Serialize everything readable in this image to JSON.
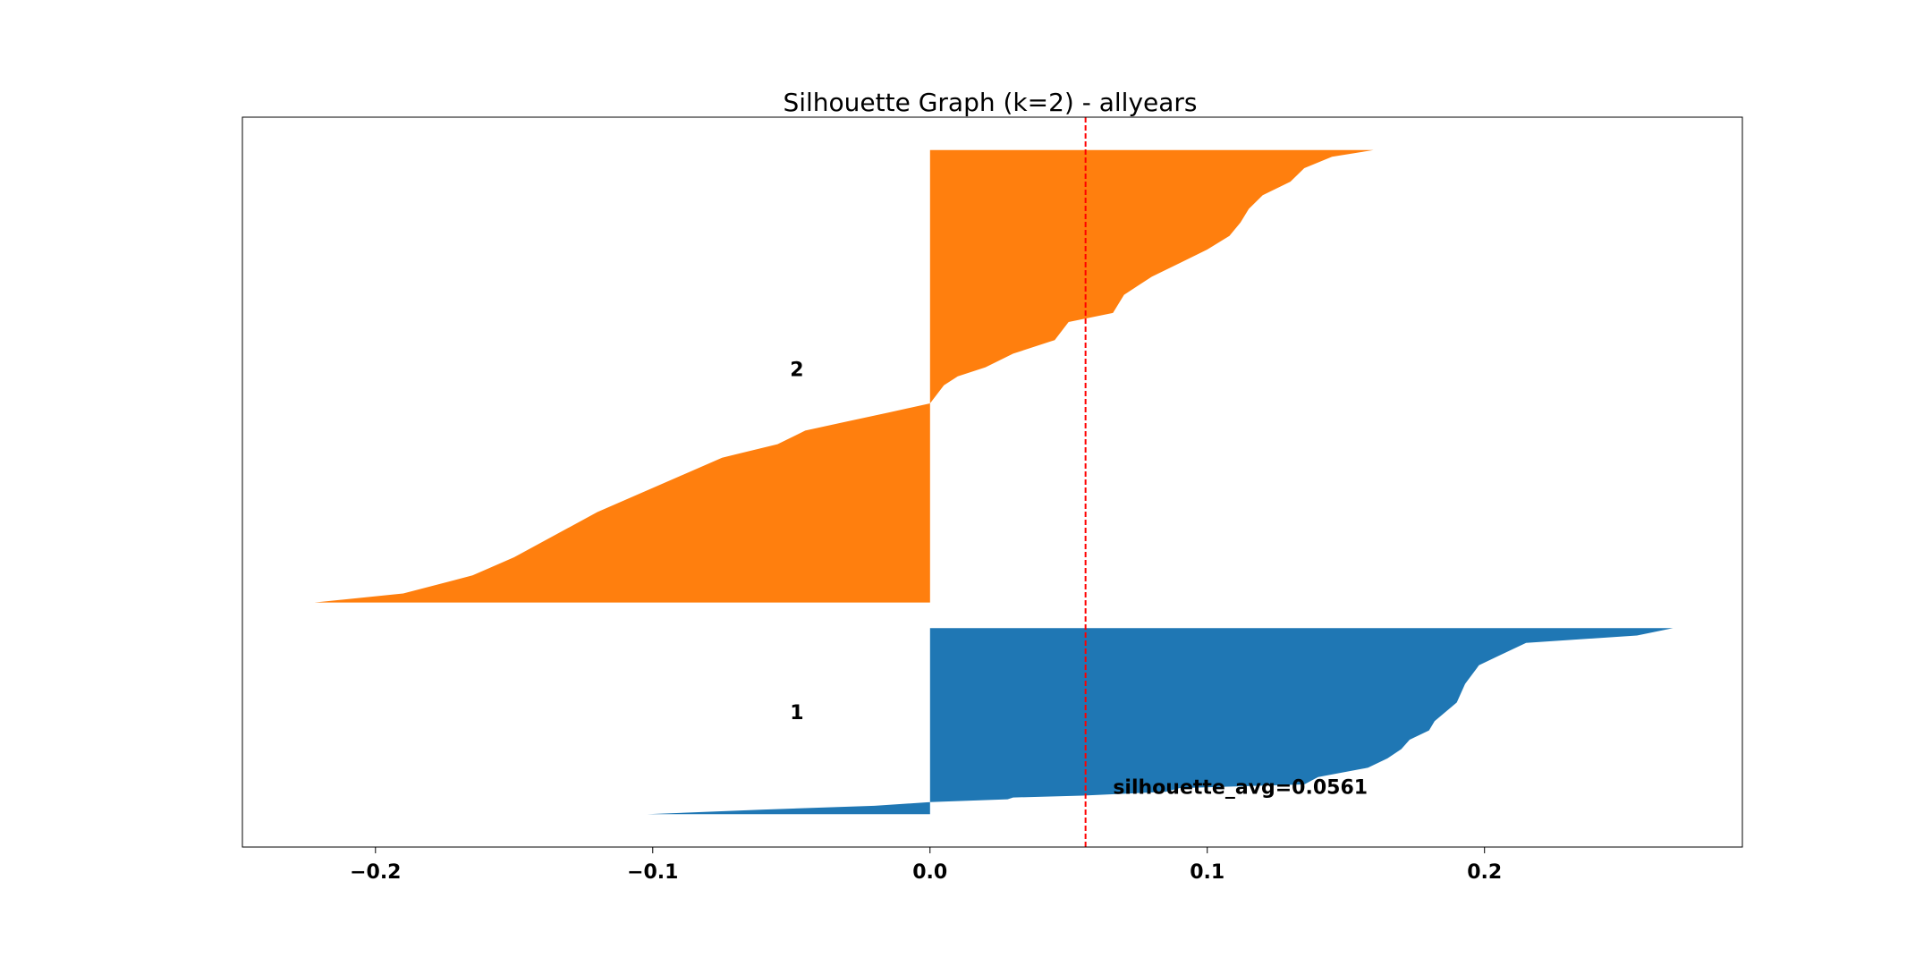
{
  "chart_data": {
    "type": "area",
    "title": "Silhouette Graph (k=2) - allyears",
    "xlabel": "",
    "ylabel": "",
    "xlim": [
      -0.248,
      0.293
    ],
    "ylim": [
      0,
      100
    ],
    "xticks": [
      -0.2,
      -0.1,
      0.0,
      0.1,
      0.2
    ],
    "xtick_labels": [
      "−0.2",
      "−0.1",
      "0.0",
      "0.1",
      "0.2"
    ],
    "grid": false,
    "clusters": [
      {
        "label": "1",
        "color": "#1f77b4",
        "y_range": [
          4.5,
          30.0
        ],
        "label_pos": [
          -0.048,
          18.5
        ],
        "profile": [
          [
            0.0,
            0.268
          ],
          [
            0.04,
            0.255
          ],
          [
            0.08,
            0.215
          ],
          [
            0.15,
            0.205
          ],
          [
            0.2,
            0.198
          ],
          [
            0.3,
            0.193
          ],
          [
            0.4,
            0.19
          ],
          [
            0.5,
            0.182
          ],
          [
            0.55,
            0.18
          ],
          [
            0.6,
            0.173
          ],
          [
            0.65,
            0.17
          ],
          [
            0.7,
            0.165
          ],
          [
            0.75,
            0.158
          ],
          [
            0.8,
            0.14
          ],
          [
            0.84,
            0.135
          ],
          [
            0.86,
            0.09
          ],
          [
            0.88,
            0.085
          ],
          [
            0.9,
            0.055
          ],
          [
            0.91,
            0.03
          ],
          [
            0.92,
            0.028
          ],
          [
            0.935,
            0.0
          ],
          [
            0.955,
            -0.02
          ],
          [
            0.975,
            -0.06
          ],
          [
            1.0,
            -0.102
          ]
        ]
      },
      {
        "label": "2",
        "color": "#ff7f0e",
        "y_range": [
          33.5,
          95.5
        ],
        "label_pos": [
          -0.048,
          65.5
        ],
        "profile": [
          [
            0.0,
            0.16
          ],
          [
            0.015,
            0.145
          ],
          [
            0.04,
            0.135
          ],
          [
            0.07,
            0.13
          ],
          [
            0.1,
            0.12
          ],
          [
            0.13,
            0.115
          ],
          [
            0.16,
            0.112
          ],
          [
            0.19,
            0.108
          ],
          [
            0.22,
            0.1
          ],
          [
            0.25,
            0.09
          ],
          [
            0.28,
            0.08
          ],
          [
            0.32,
            0.07
          ],
          [
            0.36,
            0.066
          ],
          [
            0.38,
            0.05
          ],
          [
            0.42,
            0.045
          ],
          [
            0.45,
            0.03
          ],
          [
            0.48,
            0.02
          ],
          [
            0.5,
            0.01
          ],
          [
            0.52,
            0.005
          ],
          [
            0.56,
            0.0
          ],
          [
            0.58,
            -0.015
          ],
          [
            0.6,
            -0.03
          ],
          [
            0.62,
            -0.045
          ],
          [
            0.65,
            -0.055
          ],
          [
            0.68,
            -0.075
          ],
          [
            0.72,
            -0.09
          ],
          [
            0.76,
            -0.105
          ],
          [
            0.8,
            -0.12
          ],
          [
            0.85,
            -0.135
          ],
          [
            0.9,
            -0.15
          ],
          [
            0.94,
            -0.165
          ],
          [
            0.98,
            -0.19
          ],
          [
            1.0,
            -0.222
          ]
        ]
      }
    ],
    "avg_line": {
      "value": 0.0561,
      "color": "#ff0000",
      "style": "dashed"
    },
    "annotation": {
      "text": "silhouette_avg=0.0561",
      "x": 0.066,
      "y": 8.3
    }
  }
}
